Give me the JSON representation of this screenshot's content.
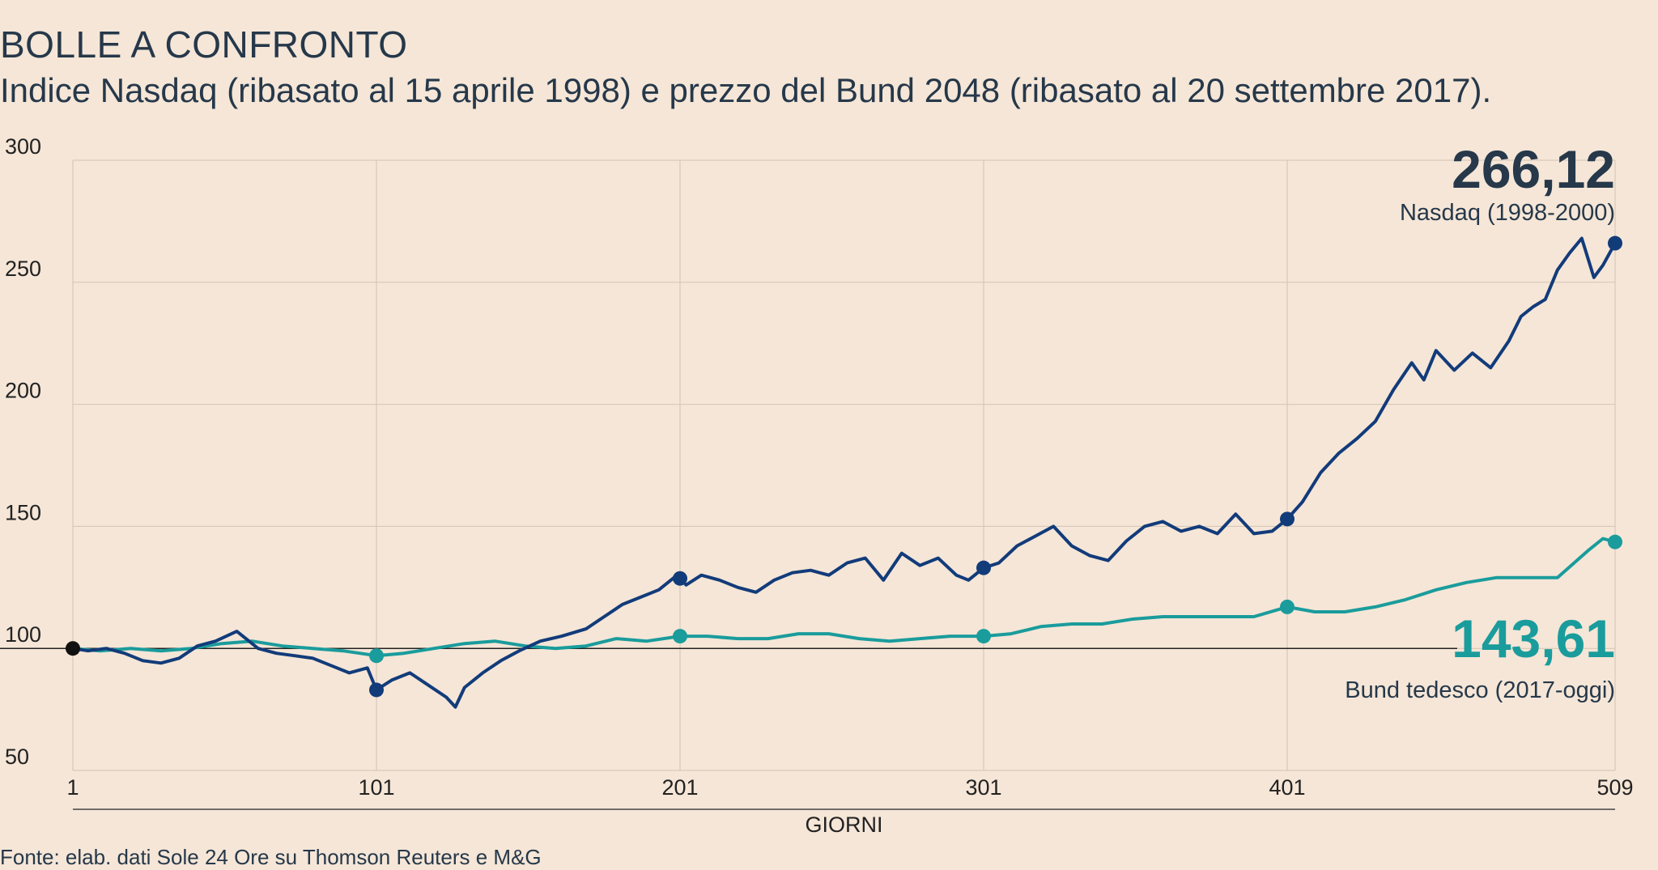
{
  "title": "BOLLE A CONFRONTO",
  "subtitle": "Indice Nasdaq (ribasato al 15 aprile 1998) e prezzo del Bund 2048 (ribasato al 20 settembre 2017).",
  "source": "Fonte: elab. dati Sole 24 Ore su Thomson Reuters e M&G",
  "colors": {
    "nasdaq": "#123b7a",
    "bund": "#1a9c9c",
    "grid": "#d3c3b4",
    "baseline": "#222222",
    "start": "#111111"
  },
  "chart_data": {
    "type": "line",
    "xlabel": "GIORNI",
    "ylabel": "",
    "xlim": [
      1,
      509
    ],
    "ylim": [
      50,
      300
    ],
    "x_ticks": [
      "1",
      "101",
      "201",
      "301",
      "401",
      "509"
    ],
    "y_ticks": [
      "300",
      "250",
      "200",
      "150",
      "100",
      "50"
    ],
    "x_tick_values": [
      1,
      101,
      201,
      301,
      401,
      509
    ],
    "y_tick_values": [
      300,
      250,
      200,
      150,
      100,
      50
    ],
    "grid": true,
    "baseline": 100,
    "series": [
      {
        "name": "Nasdaq (1998-2000)",
        "end_label": "266,12",
        "x": [
          1,
          6,
          12,
          18,
          24,
          30,
          36,
          42,
          48,
          55,
          62,
          68,
          74,
          80,
          86,
          92,
          98,
          101,
          106,
          112,
          118,
          124,
          127,
          130,
          136,
          142,
          148,
          155,
          162,
          170,
          176,
          182,
          188,
          194,
          200,
          203,
          208,
          214,
          220,
          226,
          232,
          238,
          244,
          250,
          256,
          262,
          268,
          274,
          280,
          286,
          292,
          296,
          301,
          306,
          312,
          318,
          324,
          330,
          336,
          342,
          348,
          354,
          360,
          366,
          372,
          378,
          384,
          390,
          396,
          401,
          406,
          412,
          418,
          424,
          430,
          436,
          442,
          446,
          450,
          456,
          462,
          468,
          474,
          478,
          482,
          486,
          490,
          494,
          498,
          502,
          505,
          509
        ],
        "values": [
          100,
          99,
          100,
          98,
          95,
          94,
          96,
          101,
          103,
          107,
          100,
          98,
          97,
          96,
          93,
          90,
          92,
          83,
          87,
          90,
          85,
          80,
          76,
          84,
          90,
          95,
          99,
          103,
          105,
          108,
          113,
          118,
          121,
          124,
          130,
          126,
          130,
          128,
          125,
          123,
          128,
          131,
          132,
          130,
          135,
          137,
          128,
          139,
          134,
          137,
          130,
          128,
          133,
          135,
          142,
          146,
          150,
          142,
          138,
          136,
          144,
          150,
          152,
          148,
          150,
          147,
          155,
          147,
          148,
          153,
          160,
          172,
          180,
          186,
          193,
          206,
          217,
          210,
          222,
          214,
          221,
          215,
          226,
          236,
          240,
          243,
          255,
          262,
          268,
          252,
          257,
          266
        ]
      },
      {
        "name": "Bund tedesco (2017-oggi)",
        "end_label": "143,61",
        "x": [
          1,
          10,
          20,
          30,
          40,
          50,
          60,
          70,
          80,
          90,
          101,
          110,
          120,
          130,
          140,
          150,
          160,
          170,
          180,
          190,
          201,
          210,
          220,
          230,
          240,
          250,
          260,
          270,
          280,
          290,
          301,
          310,
          320,
          330,
          340,
          350,
          360,
          370,
          380,
          390,
          401,
          410,
          420,
          430,
          440,
          450,
          460,
          470,
          480,
          490,
          500,
          505,
          509
        ],
        "values": [
          100,
          99,
          100,
          99,
          100,
          102,
          103,
          101,
          100,
          99,
          97,
          98,
          100,
          102,
          103,
          101,
          100,
          101,
          104,
          103,
          105,
          105,
          104,
          104,
          106,
          106,
          104,
          103,
          104,
          105,
          105,
          106,
          109,
          110,
          110,
          112,
          113,
          113,
          113,
          113,
          117,
          115,
          115,
          117,
          120,
          124,
          127,
          129,
          129,
          129,
          140,
          145,
          143.61
        ]
      }
    ],
    "highlight_x": [
      101,
      201,
      301,
      401
    ]
  }
}
